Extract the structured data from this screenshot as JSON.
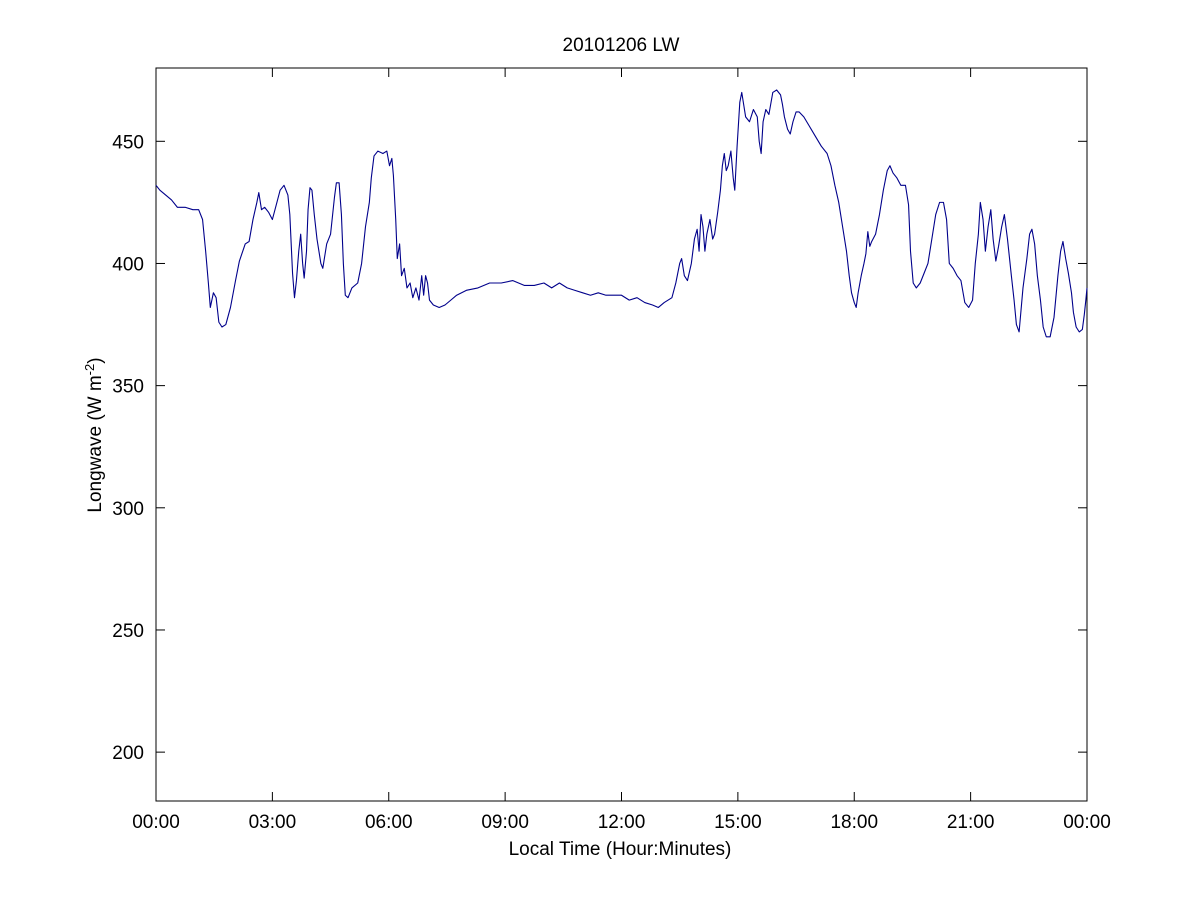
{
  "chart_data": {
    "type": "line",
    "title": "20101206 LW",
    "xlabel": "Local Time (Hour:Minutes)",
    "ylabel": {
      "main": "Longwave (W m",
      "sup": "-2",
      "close": ")"
    },
    "xlim": [
      0,
      24
    ],
    "ylim": [
      180,
      480
    ],
    "x_ticks": [
      {
        "value": 0,
        "label": "00:00"
      },
      {
        "value": 3,
        "label": "03:00"
      },
      {
        "value": 6,
        "label": "06:00"
      },
      {
        "value": 9,
        "label": "09:00"
      },
      {
        "value": 12,
        "label": "12:00"
      },
      {
        "value": 15,
        "label": "15:00"
      },
      {
        "value": 18,
        "label": "18:00"
      },
      {
        "value": 21,
        "label": "21:00"
      },
      {
        "value": 24,
        "label": "00:00"
      }
    ],
    "y_ticks": [
      {
        "value": 200,
        "label": "200"
      },
      {
        "value": 250,
        "label": "250"
      },
      {
        "value": 300,
        "label": "300"
      },
      {
        "value": 350,
        "label": "350"
      },
      {
        "value": 400,
        "label": "400"
      },
      {
        "value": 450,
        "label": "450"
      }
    ],
    "grid": false,
    "line_color": "#00008b",
    "series": [
      {
        "x_unit": "hours",
        "points": [
          [
            0.0,
            432
          ],
          [
            0.1,
            430
          ],
          [
            0.25,
            428
          ],
          [
            0.4,
            426
          ],
          [
            0.55,
            423
          ],
          [
            0.75,
            423
          ],
          [
            0.95,
            422
          ],
          [
            1.1,
            422
          ],
          [
            1.2,
            418
          ],
          [
            1.28,
            405
          ],
          [
            1.35,
            392
          ],
          [
            1.4,
            382
          ],
          [
            1.48,
            388
          ],
          [
            1.55,
            386
          ],
          [
            1.62,
            376
          ],
          [
            1.7,
            374
          ],
          [
            1.8,
            375
          ],
          [
            1.92,
            382
          ],
          [
            2.05,
            393
          ],
          [
            2.15,
            401
          ],
          [
            2.3,
            408
          ],
          [
            2.4,
            409
          ],
          [
            2.5,
            418
          ],
          [
            2.6,
            425
          ],
          [
            2.65,
            429
          ],
          [
            2.72,
            422
          ],
          [
            2.8,
            423
          ],
          [
            2.9,
            421
          ],
          [
            3.0,
            418
          ],
          [
            3.1,
            424
          ],
          [
            3.2,
            430
          ],
          [
            3.3,
            432
          ],
          [
            3.4,
            428
          ],
          [
            3.45,
            420
          ],
          [
            3.52,
            396
          ],
          [
            3.57,
            386
          ],
          [
            3.62,
            393
          ],
          [
            3.68,
            405
          ],
          [
            3.73,
            412
          ],
          [
            3.78,
            400
          ],
          [
            3.82,
            394
          ],
          [
            3.88,
            405
          ],
          [
            3.92,
            422
          ],
          [
            3.97,
            431
          ],
          [
            4.02,
            430
          ],
          [
            4.08,
            420
          ],
          [
            4.15,
            410
          ],
          [
            4.2,
            405
          ],
          [
            4.25,
            400
          ],
          [
            4.3,
            398
          ],
          [
            4.4,
            408
          ],
          [
            4.5,
            412
          ],
          [
            4.6,
            427
          ],
          [
            4.65,
            433
          ],
          [
            4.72,
            433
          ],
          [
            4.78,
            420
          ],
          [
            4.83,
            400
          ],
          [
            4.88,
            387
          ],
          [
            4.95,
            386
          ],
          [
            5.05,
            390
          ],
          [
            5.2,
            392
          ],
          [
            5.3,
            400
          ],
          [
            5.4,
            415
          ],
          [
            5.5,
            425
          ],
          [
            5.55,
            435
          ],
          [
            5.62,
            444
          ],
          [
            5.72,
            446
          ],
          [
            5.85,
            445
          ],
          [
            5.95,
            446
          ],
          [
            6.02,
            440
          ],
          [
            6.08,
            443
          ],
          [
            6.12,
            436
          ],
          [
            6.18,
            418
          ],
          [
            6.22,
            402
          ],
          [
            6.28,
            408
          ],
          [
            6.33,
            395
          ],
          [
            6.4,
            398
          ],
          [
            6.47,
            390
          ],
          [
            6.55,
            392
          ],
          [
            6.62,
            386
          ],
          [
            6.7,
            390
          ],
          [
            6.78,
            385
          ],
          [
            6.85,
            395
          ],
          [
            6.9,
            387
          ],
          [
            6.95,
            395
          ],
          [
            7.0,
            392
          ],
          [
            7.05,
            385
          ],
          [
            7.15,
            383
          ],
          [
            7.3,
            382
          ],
          [
            7.45,
            383
          ],
          [
            7.6,
            385
          ],
          [
            7.75,
            387
          ],
          [
            8.0,
            389
          ],
          [
            8.3,
            390
          ],
          [
            8.6,
            392
          ],
          [
            8.9,
            392
          ],
          [
            9.2,
            393
          ],
          [
            9.5,
            391
          ],
          [
            9.75,
            391
          ],
          [
            10.0,
            392
          ],
          [
            10.2,
            390
          ],
          [
            10.4,
            392
          ],
          [
            10.6,
            390
          ],
          [
            10.8,
            389
          ],
          [
            11.0,
            388
          ],
          [
            11.2,
            387
          ],
          [
            11.4,
            388
          ],
          [
            11.6,
            387
          ],
          [
            11.8,
            387
          ],
          [
            12.0,
            387
          ],
          [
            12.2,
            385
          ],
          [
            12.4,
            386
          ],
          [
            12.6,
            384
          ],
          [
            12.8,
            383
          ],
          [
            12.95,
            382
          ],
          [
            13.1,
            384
          ],
          [
            13.3,
            386
          ],
          [
            13.4,
            392
          ],
          [
            13.5,
            400
          ],
          [
            13.55,
            402
          ],
          [
            13.62,
            395
          ],
          [
            13.7,
            393
          ],
          [
            13.8,
            400
          ],
          [
            13.88,
            410
          ],
          [
            13.95,
            414
          ],
          [
            14.0,
            405
          ],
          [
            14.05,
            420
          ],
          [
            14.1,
            415
          ],
          [
            14.15,
            405
          ],
          [
            14.2,
            412
          ],
          [
            14.28,
            418
          ],
          [
            14.35,
            410
          ],
          [
            14.4,
            412
          ],
          [
            14.48,
            421
          ],
          [
            14.55,
            430
          ],
          [
            14.6,
            440
          ],
          [
            14.65,
            445
          ],
          [
            14.7,
            438
          ],
          [
            14.75,
            440
          ],
          [
            14.82,
            446
          ],
          [
            14.88,
            435
          ],
          [
            14.92,
            430
          ],
          [
            14.98,
            448
          ],
          [
            15.05,
            466
          ],
          [
            15.1,
            470
          ],
          [
            15.15,
            465
          ],
          [
            15.2,
            460
          ],
          [
            15.3,
            458
          ],
          [
            15.4,
            463
          ],
          [
            15.5,
            460
          ],
          [
            15.55,
            450
          ],
          [
            15.6,
            445
          ],
          [
            15.65,
            458
          ],
          [
            15.72,
            463
          ],
          [
            15.8,
            461
          ],
          [
            15.9,
            470
          ],
          [
            16.0,
            471
          ],
          [
            16.1,
            469
          ],
          [
            16.15,
            465
          ],
          [
            16.2,
            460
          ],
          [
            16.28,
            455
          ],
          [
            16.35,
            453
          ],
          [
            16.42,
            458
          ],
          [
            16.5,
            462
          ],
          [
            16.58,
            462
          ],
          [
            16.7,
            460
          ],
          [
            16.85,
            456
          ],
          [
            17.0,
            452
          ],
          [
            17.15,
            448
          ],
          [
            17.3,
            445
          ],
          [
            17.4,
            440
          ],
          [
            17.5,
            432
          ],
          [
            17.6,
            425
          ],
          [
            17.7,
            415
          ],
          [
            17.8,
            405
          ],
          [
            17.87,
            395
          ],
          [
            17.93,
            388
          ],
          [
            18.0,
            384
          ],
          [
            18.05,
            382
          ],
          [
            18.1,
            388
          ],
          [
            18.18,
            395
          ],
          [
            18.25,
            400
          ],
          [
            18.3,
            404
          ],
          [
            18.35,
            413
          ],
          [
            18.4,
            407
          ],
          [
            18.45,
            409
          ],
          [
            18.55,
            412
          ],
          [
            18.65,
            420
          ],
          [
            18.75,
            430
          ],
          [
            18.85,
            438
          ],
          [
            18.92,
            440
          ],
          [
            19.0,
            437
          ],
          [
            19.1,
            435
          ],
          [
            19.2,
            432
          ],
          [
            19.32,
            432
          ],
          [
            19.4,
            424
          ],
          [
            19.45,
            405
          ],
          [
            19.52,
            392
          ],
          [
            19.6,
            390
          ],
          [
            19.7,
            392
          ],
          [
            19.8,
            396
          ],
          [
            19.9,
            400
          ],
          [
            20.0,
            410
          ],
          [
            20.1,
            420
          ],
          [
            20.2,
            425
          ],
          [
            20.3,
            425
          ],
          [
            20.38,
            418
          ],
          [
            20.45,
            400
          ],
          [
            20.55,
            398
          ],
          [
            20.65,
            395
          ],
          [
            20.75,
            393
          ],
          [
            20.85,
            384
          ],
          [
            20.95,
            382
          ],
          [
            21.05,
            385
          ],
          [
            21.12,
            400
          ],
          [
            21.2,
            412
          ],
          [
            21.25,
            425
          ],
          [
            21.32,
            418
          ],
          [
            21.38,
            405
          ],
          [
            21.45,
            415
          ],
          [
            21.52,
            422
          ],
          [
            21.58,
            410
          ],
          [
            21.65,
            401
          ],
          [
            21.72,
            407
          ],
          [
            21.8,
            415
          ],
          [
            21.87,
            420
          ],
          [
            21.95,
            410
          ],
          [
            22.05,
            395
          ],
          [
            22.12,
            385
          ],
          [
            22.18,
            375
          ],
          [
            22.25,
            372
          ],
          [
            22.35,
            390
          ],
          [
            22.45,
            402
          ],
          [
            22.52,
            412
          ],
          [
            22.58,
            414
          ],
          [
            22.65,
            408
          ],
          [
            22.72,
            395
          ],
          [
            22.8,
            385
          ],
          [
            22.87,
            374
          ],
          [
            22.95,
            370
          ],
          [
            23.05,
            370
          ],
          [
            23.15,
            378
          ],
          [
            23.25,
            395
          ],
          [
            23.32,
            405
          ],
          [
            23.38,
            409
          ],
          [
            23.45,
            402
          ],
          [
            23.52,
            396
          ],
          [
            23.6,
            388
          ],
          [
            23.65,
            380
          ],
          [
            23.72,
            374
          ],
          [
            23.8,
            372
          ],
          [
            23.88,
            373
          ],
          [
            23.93,
            379
          ],
          [
            23.97,
            385
          ],
          [
            24.0,
            390
          ]
        ]
      }
    ]
  }
}
